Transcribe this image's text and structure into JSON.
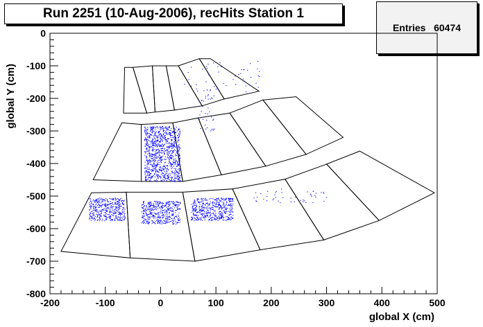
{
  "title": "Run 2251 (10-Aug-2006), recHits Station 1",
  "stats": {
    "label": "Entries",
    "value": "60474"
  },
  "chart_data": {
    "type": "scatter",
    "title": "Run 2251 (10-Aug-2006), recHits Station 1",
    "xlabel": "global X (cm)",
    "ylabel": "global Y (cm)",
    "xlim": [
      -200,
      500
    ],
    "ylim": [
      -800,
      0
    ],
    "x_ticks": [
      -200,
      -100,
      0,
      100,
      200,
      300,
      400,
      500
    ],
    "y_ticks": [
      0,
      -100,
      -200,
      -300,
      -400,
      -500,
      -600,
      -700,
      -800
    ],
    "marker_color": "#0000ff",
    "chamber_outlines": [
      {
        "ring": 1,
        "corners": [
          [
            -65,
            -105
          ],
          [
            -50,
            -105
          ],
          [
            -25,
            -245
          ],
          [
            -67,
            -245
          ]
        ]
      },
      {
        "ring": 1,
        "corners": [
          [
            -50,
            -105
          ],
          [
            -15,
            -100
          ],
          [
            -10,
            -242
          ],
          [
            -25,
            -245
          ]
        ]
      },
      {
        "ring": 1,
        "corners": [
          [
            -15,
            -100
          ],
          [
            10,
            -100
          ],
          [
            25,
            -236
          ],
          [
            -10,
            -242
          ]
        ]
      },
      {
        "ring": 1,
        "corners": [
          [
            10,
            -100
          ],
          [
            32,
            -100
          ],
          [
            75,
            -223
          ],
          [
            25,
            -236
          ]
        ]
      },
      {
        "ring": 1,
        "corners": [
          [
            32,
            -100
          ],
          [
            70,
            -78
          ],
          [
            115,
            -202
          ],
          [
            75,
            -223
          ]
        ]
      },
      {
        "ring": 1,
        "corners": [
          [
            70,
            -78
          ],
          [
            90,
            -78
          ],
          [
            178,
            -178
          ],
          [
            115,
            -202
          ]
        ]
      },
      {
        "ring": 2,
        "corners": [
          [
            -70,
            -275
          ],
          [
            -35,
            -280
          ],
          [
            -35,
            -455
          ],
          [
            -122,
            -450
          ]
        ]
      },
      {
        "ring": 2,
        "corners": [
          [
            -35,
            -280
          ],
          [
            22,
            -275
          ],
          [
            40,
            -455
          ],
          [
            -35,
            -455
          ]
        ]
      },
      {
        "ring": 2,
        "corners": [
          [
            22,
            -275
          ],
          [
            68,
            -260
          ],
          [
            110,
            -435
          ],
          [
            40,
            -455
          ]
        ]
      },
      {
        "ring": 2,
        "corners": [
          [
            68,
            -260
          ],
          [
            125,
            -245
          ],
          [
            190,
            -408
          ],
          [
            110,
            -435
          ]
        ]
      },
      {
        "ring": 2,
        "corners": [
          [
            125,
            -245
          ],
          [
            185,
            -205
          ],
          [
            263,
            -372
          ],
          [
            190,
            -408
          ]
        ]
      },
      {
        "ring": 2,
        "corners": [
          [
            185,
            -205
          ],
          [
            245,
            -195
          ],
          [
            330,
            -320
          ],
          [
            263,
            -372
          ]
        ]
      },
      {
        "ring": 3,
        "corners": [
          [
            -125,
            -490
          ],
          [
            -62,
            -488
          ],
          [
            -55,
            -690
          ],
          [
            -180,
            -670
          ]
        ]
      },
      {
        "ring": 3,
        "corners": [
          [
            -62,
            -488
          ],
          [
            40,
            -488
          ],
          [
            62,
            -700
          ],
          [
            -55,
            -690
          ]
        ]
      },
      {
        "ring": 3,
        "corners": [
          [
            40,
            -488
          ],
          [
            130,
            -478
          ],
          [
            180,
            -665
          ],
          [
            62,
            -700
          ]
        ]
      },
      {
        "ring": 3,
        "corners": [
          [
            130,
            -478
          ],
          [
            225,
            -448
          ],
          [
            295,
            -635
          ],
          [
            180,
            -665
          ]
        ]
      },
      {
        "ring": 3,
        "corners": [
          [
            225,
            -448
          ],
          [
            300,
            -402
          ],
          [
            395,
            -575
          ],
          [
            295,
            -635
          ]
        ]
      },
      {
        "ring": 3,
        "corners": [
          [
            300,
            -402
          ],
          [
            360,
            -362
          ],
          [
            495,
            -490
          ],
          [
            395,
            -575
          ]
        ]
      }
    ],
    "hit_clusters": [
      {
        "x_range": [
          -130,
          -65
        ],
        "y_range": [
          -505,
          -575
        ],
        "density": "high"
      },
      {
        "x_range": [
          -35,
          35
        ],
        "y_range": [
          -515,
          -585
        ],
        "density": "high"
      },
      {
        "x_range": [
          55,
          130
        ],
        "y_range": [
          -505,
          -575
        ],
        "density": "high"
      },
      {
        "x_range": [
          -30,
          35
        ],
        "y_range": [
          -285,
          -455
        ],
        "density": "high"
      },
      {
        "x_range": [
          65,
          100
        ],
        "y_range": [
          -170,
          -300
        ],
        "density": "low"
      },
      {
        "x_range": [
          40,
          180
        ],
        "y_range": [
          -85,
          -180
        ],
        "density": "low"
      },
      {
        "x_range": [
          165,
          300
        ],
        "y_range": [
          -475,
          -520
        ],
        "density": "low"
      }
    ]
  }
}
